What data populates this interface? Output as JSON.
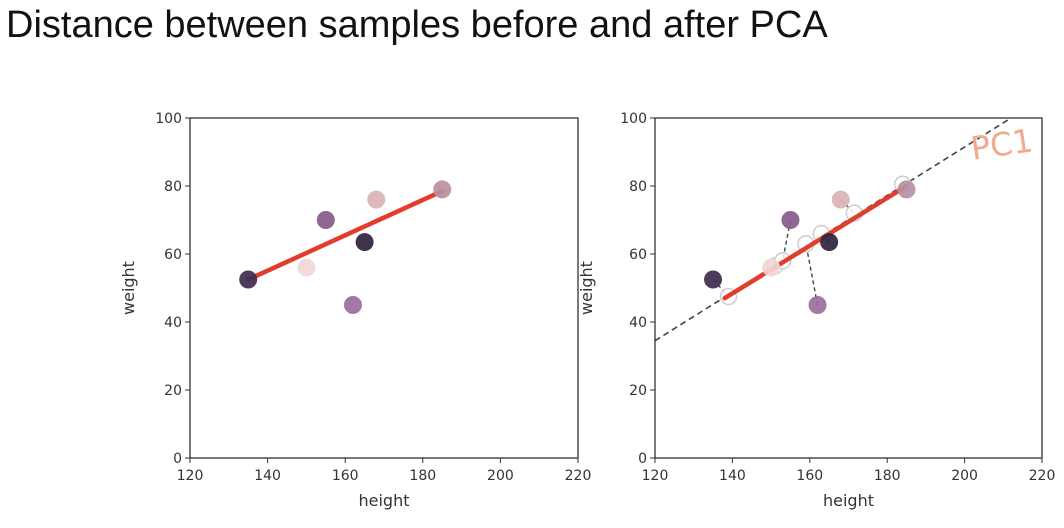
{
  "title": "Distance between samples before and after PCA",
  "colors": {
    "regression_line": "#e23d2c",
    "pc_line": "#444444",
    "projection_fill": "#ffffff",
    "projection_stroke": "#cfcfcf",
    "annotation": "#f2a98c"
  },
  "chart_data": [
    {
      "type": "scatter",
      "xlabel": "height",
      "ylabel": "weight",
      "xlim": [
        120,
        220
      ],
      "ylim": [
        0,
        100
      ],
      "xticks": [
        120,
        140,
        160,
        180,
        200,
        220
      ],
      "yticks": [
        0,
        20,
        40,
        60,
        80,
        100
      ],
      "grid": false,
      "points": [
        {
          "x": 135,
          "y": 52.5,
          "color": "#3d2b50"
        },
        {
          "x": 150,
          "y": 56,
          "color": "#efd8d3"
        },
        {
          "x": 155,
          "y": 70,
          "color": "#845a89"
        },
        {
          "x": 162,
          "y": 45,
          "color": "#9c6c9c"
        },
        {
          "x": 165,
          "y": 63.5,
          "color": "#2f233d"
        },
        {
          "x": 168,
          "y": 76,
          "color": "#dbb3b5"
        },
        {
          "x": 185,
          "y": 79,
          "color": "#b790a3"
        }
      ],
      "lines": [
        {
          "role": "regression",
          "from": [
            135,
            52.5
          ],
          "to": [
            185,
            78.5
          ]
        }
      ]
    },
    {
      "type": "scatter",
      "xlabel": "height",
      "ylabel": "weight",
      "xlim": [
        120,
        220
      ],
      "ylim": [
        0,
        100
      ],
      "xticks": [
        120,
        140,
        160,
        180,
        200,
        220
      ],
      "yticks": [
        0,
        20,
        40,
        60,
        80,
        100
      ],
      "grid": false,
      "points": [
        {
          "x": 135,
          "y": 52.5,
          "color": "#3d2b50"
        },
        {
          "x": 150,
          "y": 56,
          "color": "#efd8d3"
        },
        {
          "x": 155,
          "y": 70,
          "color": "#845a89"
        },
        {
          "x": 162,
          "y": 45,
          "color": "#9c6c9c"
        },
        {
          "x": 165,
          "y": 63.5,
          "color": "#2f233d"
        },
        {
          "x": 168,
          "y": 76,
          "color": "#dbb3b5"
        },
        {
          "x": 185,
          "y": 79,
          "color": "#b790a3"
        }
      ],
      "projections": [
        {
          "x": 139,
          "y": 47.5
        },
        {
          "x": 151,
          "y": 56.5
        },
        {
          "x": 153,
          "y": 58
        },
        {
          "x": 159,
          "y": 63
        },
        {
          "x": 163,
          "y": 66
        },
        {
          "x": 171.5,
          "y": 72
        },
        {
          "x": 184,
          "y": 80.5
        }
      ],
      "lines": [
        {
          "role": "pc_axis",
          "style": "dashed",
          "from": [
            120,
            34.5
          ],
          "to": [
            212,
            100
          ]
        },
        {
          "role": "regression",
          "from": [
            138,
            47
          ],
          "to": [
            185,
            80
          ]
        }
      ],
      "annotations": [
        {
          "text": "PC1",
          "x": 210,
          "y": 89
        }
      ]
    }
  ]
}
